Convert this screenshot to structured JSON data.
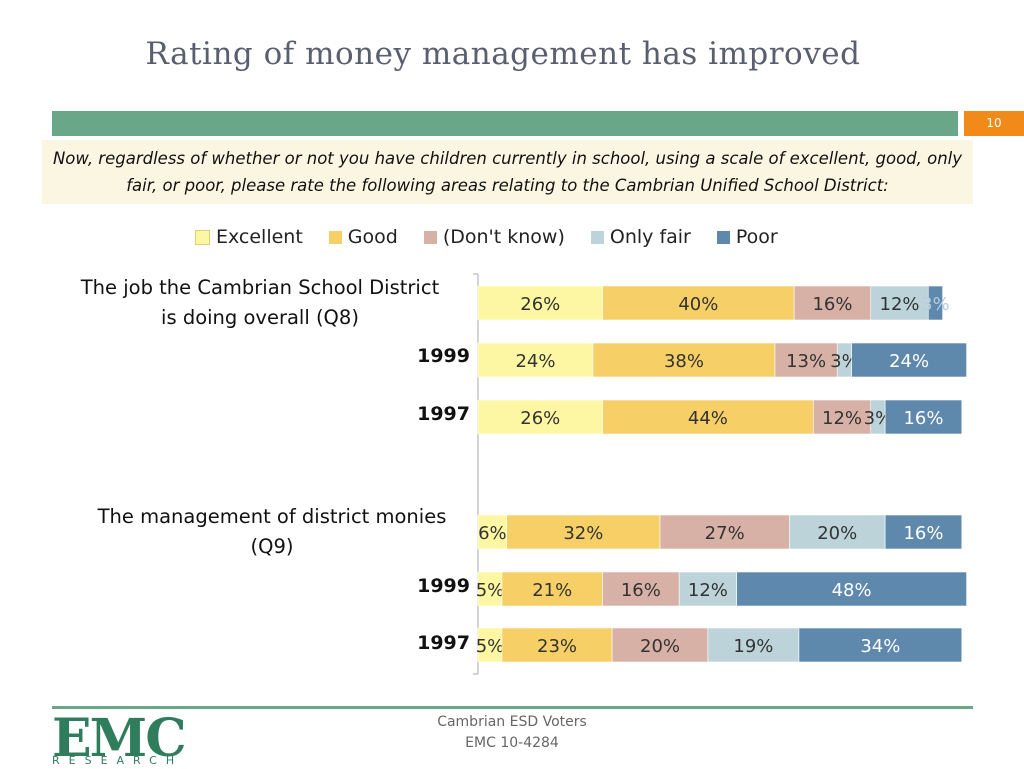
{
  "title": "Rating of money management has improved",
  "page_number": "10",
  "question": "Now, regardless of whether or not you have children currently in school, using a scale of excellent, good, only fair, or poor, please rate the following areas relating to the Cambrian Unified School District:",
  "legend": [
    {
      "label": "Excellent",
      "color": "#fdf7a3"
    },
    {
      "label": "Good",
      "color": "#f6cf66"
    },
    {
      "label": "(Don't know)",
      "color": "#d8b1a6"
    },
    {
      "label": "Only fair",
      "color": "#bcd3da"
    },
    {
      "label": "Poor",
      "color": "#5f88ad"
    }
  ],
  "groups": [
    {
      "label_line1": "The job the Cambrian School District",
      "label_line2": "is doing overall (Q8)"
    },
    {
      "label_line1": "The management of district monies",
      "label_line2": "(Q9)"
    }
  ],
  "chart_data": {
    "type": "bar",
    "orientation": "horizontal",
    "stacked": true,
    "percent": true,
    "categories": [
      "The job the Cambrian School District is doing overall (Q8)",
      "1999",
      "1997",
      "The management of district monies (Q9)",
      "1999",
      "1997"
    ],
    "series": [
      {
        "name": "Excellent",
        "values": [
          26,
          24,
          26,
          6,
          5,
          5
        ]
      },
      {
        "name": "Good",
        "values": [
          40,
          38,
          44,
          32,
          21,
          23
        ]
      },
      {
        "name": "(Don't know)",
        "values": [
          16,
          13,
          12,
          27,
          16,
          20
        ]
      },
      {
        "name": "Only fair",
        "values": [
          12,
          3,
          3,
          20,
          12,
          19
        ]
      },
      {
        "name": "Poor",
        "values": [
          3,
          24,
          16,
          16,
          48,
          34
        ]
      }
    ],
    "data_labels": [
      [
        "26%",
        "40%",
        "16%",
        "12%",
        "3%"
      ],
      [
        "24%",
        "38%",
        "13%",
        "3%",
        "24%"
      ],
      [
        "26%",
        "44%",
        "12%",
        "3%",
        "16%"
      ],
      [
        "6%",
        "32%",
        "27%",
        "20%",
        "16%"
      ],
      [
        "5%",
        "21%",
        "16%",
        "12%",
        "48%"
      ],
      [
        "5%",
        "23%",
        "20%",
        "19%",
        "34%"
      ]
    ],
    "xlim": [
      0,
      100
    ]
  },
  "footer": {
    "line1": "Cambrian ESD Voters",
    "line2": "EMC 10-4284"
  },
  "logo": {
    "big": "EMC",
    "small": "RESEARCH"
  }
}
